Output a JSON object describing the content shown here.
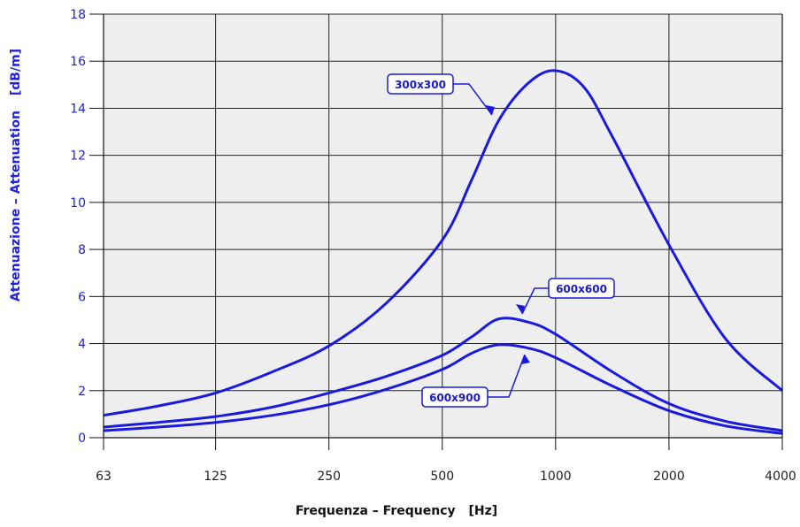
{
  "chart_data": {
    "type": "line",
    "title": "",
    "xlabel": "Frequenza – Frequency",
    "xlabel_unit": "[Hz]",
    "ylabel": "Attenuazione – Attenuation",
    "ylabel_unit": "[dB/m]",
    "x_scale": "log2",
    "x": [
      63,
      125,
      250,
      500,
      1000,
      2000,
      4000
    ],
    "x_tick_labels": [
      "63",
      "125",
      "250",
      "500",
      "1000",
      "2000",
      "4000"
    ],
    "ylim": [
      0,
      18
    ],
    "y_ticks": [
      0,
      2,
      4,
      6,
      8,
      10,
      12,
      14,
      16,
      18
    ],
    "y_tick_labels": [
      "0",
      "2",
      "4",
      "6",
      "8",
      "10",
      "12",
      "14",
      "16",
      "18"
    ],
    "grid": true,
    "series": [
      {
        "name": "300x300",
        "x": [
          63,
          88,
          125,
          177,
          250,
          354,
          500,
          600,
          707,
          850,
          1000,
          1189,
          1414,
          2000,
          2828,
          4000
        ],
        "values": [
          0.95,
          1.35,
          1.9,
          2.8,
          3.9,
          5.7,
          8.4,
          11.0,
          13.5,
          15.1,
          15.6,
          14.9,
          12.8,
          8.2,
          4.2,
          2.0
        ]
      },
      {
        "name": "600x600",
        "x": [
          63,
          88,
          125,
          177,
          250,
          354,
          500,
          600,
          707,
          850,
          1000,
          1414,
          2000,
          2828,
          4000
        ],
        "values": [
          0.45,
          0.65,
          0.9,
          1.3,
          1.9,
          2.6,
          3.5,
          4.3,
          5.05,
          4.9,
          4.4,
          2.8,
          1.45,
          0.7,
          0.3
        ]
      },
      {
        "name": "600x900",
        "x": [
          63,
          88,
          125,
          177,
          250,
          354,
          500,
          600,
          707,
          850,
          1000,
          1414,
          2000,
          2828,
          4000
        ],
        "values": [
          0.3,
          0.45,
          0.65,
          0.95,
          1.4,
          2.05,
          2.9,
          3.6,
          3.95,
          3.8,
          3.4,
          2.2,
          1.15,
          0.5,
          0.18
        ]
      }
    ],
    "colors": {
      "series": "#1a1add",
      "plot_background": "#eeeeee",
      "grid": "#222222",
      "label_fill": "#ffffff"
    }
  }
}
